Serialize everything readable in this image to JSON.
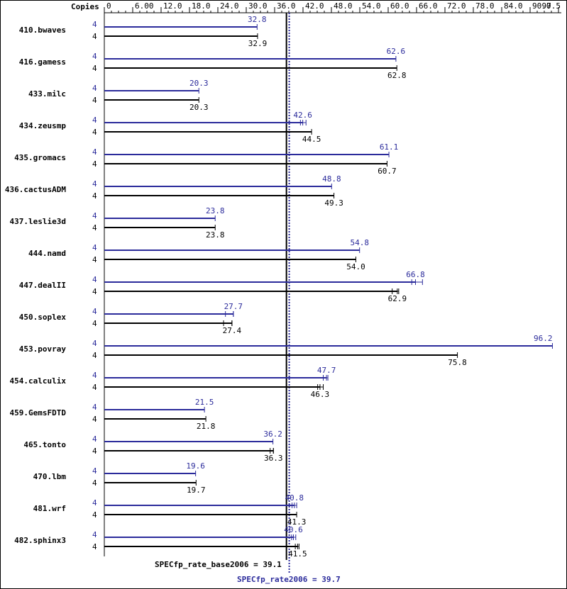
{
  "chart_data": {
    "type": "bar",
    "orientation": "horizontal",
    "axis_title": "Copies",
    "x_ticks": [
      "0",
      "6.00",
      "12.0",
      "18.0",
      "24.0",
      "30.0",
      "36.0",
      "42.0",
      "48.0",
      "54.0",
      "60.0",
      "66.0",
      "72.0",
      "78.0",
      "84.0",
      "90.0",
      "97.5"
    ],
    "xlim": [
      0,
      97.5
    ],
    "categories": [
      "410.bwaves",
      "416.gamess",
      "433.milc",
      "434.zeusmp",
      "435.gromacs",
      "436.cactusADM",
      "437.leslie3d",
      "444.namd",
      "447.dealII",
      "450.soplex",
      "453.povray",
      "454.calculix",
      "459.GemsFDTD",
      "465.tonto",
      "470.lbm",
      "481.wrf",
      "482.sphinx3"
    ],
    "copies": [
      "4",
      "4"
    ],
    "series": [
      {
        "name": "SPECfp_rate2006",
        "color": "#2b2b9b",
        "values": [
          32.8,
          62.6,
          20.3,
          42.6,
          61.1,
          48.8,
          23.8,
          54.8,
          66.8,
          27.7,
          96.2,
          47.7,
          21.5,
          36.2,
          19.6,
          40.8,
          40.6
        ],
        "labels": [
          "32.8",
          "62.6",
          "20.3",
          "42.6",
          "61.1",
          "48.8",
          "23.8",
          "54.8",
          "66.8",
          "27.7",
          "96.2",
          "47.7",
          "21.5",
          "36.2",
          "19.6",
          "40.8",
          "40.6"
        ],
        "minmax": [
          null,
          null,
          null,
          [
            42.1,
            43.3
          ],
          null,
          null,
          null,
          null,
          [
            66.0,
            68.3
          ],
          [
            26.0,
            27.7
          ],
          null,
          [
            47.0,
            48.0
          ],
          null,
          null,
          null,
          [
            40.3,
            41.3
          ],
          [
            40.2,
            41.1
          ]
        ]
      },
      {
        "name": "SPECfp_rate_base2006",
        "color": "#000000",
        "values": [
          32.9,
          62.8,
          20.3,
          44.5,
          60.7,
          49.3,
          23.8,
          54.0,
          62.9,
          27.4,
          75.8,
          46.3,
          21.8,
          36.3,
          19.7,
          41.3,
          41.5
        ],
        "labels": [
          "32.9",
          "62.8",
          "20.3",
          "44.5",
          "60.7",
          "49.3",
          "23.8",
          "54.0",
          "62.9",
          "27.4",
          "75.8",
          "46.3",
          "21.8",
          "36.3",
          "19.7",
          "41.3",
          "41.5"
        ],
        "minmax": [
          null,
          null,
          null,
          null,
          null,
          null,
          null,
          null,
          [
            61.8,
            63.2
          ],
          [
            25.6,
            27.4
          ],
          null,
          [
            45.8,
            47.0
          ],
          null,
          [
            35.6,
            36.3
          ],
          null,
          null,
          [
            41.0,
            41.8
          ]
        ]
      }
    ],
    "reference_lines": [
      {
        "series": "SPECfp_rate_base2006",
        "value": 39.1,
        "label": "SPECfp_rate_base2006 = 39.1",
        "style": "solid",
        "color": "#000000"
      },
      {
        "series": "SPECfp_rate2006",
        "value": 39.7,
        "label": "SPECfp_rate2006 = 39.7",
        "style": "dotted",
        "color": "#2b2b9b"
      }
    ]
  }
}
